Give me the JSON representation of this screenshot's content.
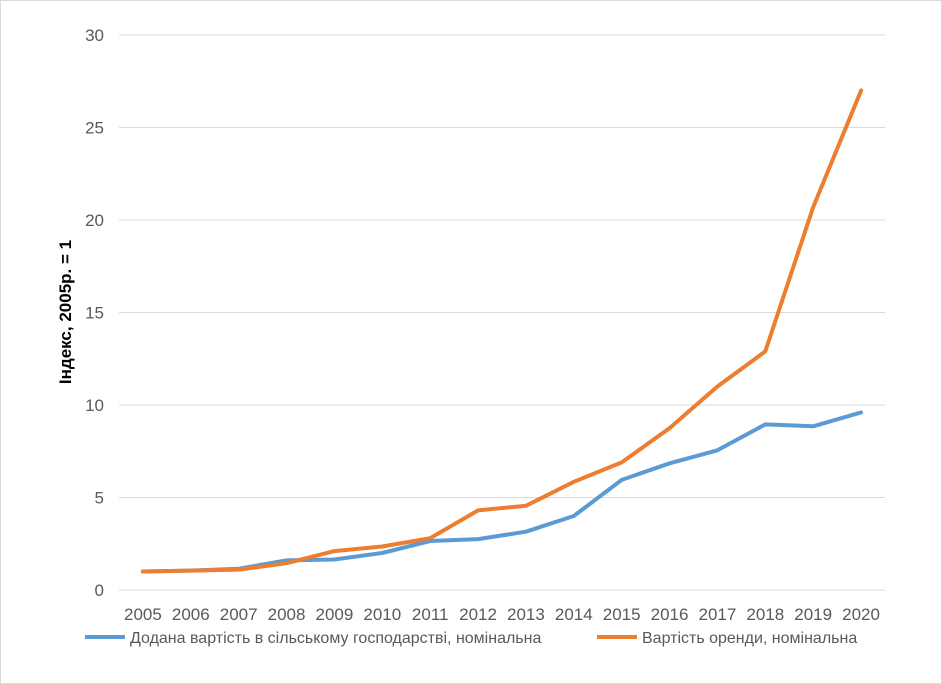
{
  "chart_data": {
    "type": "line",
    "title": "",
    "xlabel": "",
    "ylabel": "Індекс, 2005р. = 1",
    "ylim": [
      0,
      30
    ],
    "yticks": [
      0,
      5,
      10,
      15,
      20,
      25,
      30
    ],
    "grid": true,
    "legend_position": "bottom",
    "categories": [
      "2005",
      "2006",
      "2007",
      "2008",
      "2009",
      "2010",
      "2011",
      "2012",
      "2013",
      "2014",
      "2015",
      "2016",
      "2017",
      "2018",
      "2019",
      "2020"
    ],
    "series": [
      {
        "name": "Додана вартість в сільському господарстві,  номінальна",
        "color": "#5b9bd5",
        "values": [
          1.0,
          1.05,
          1.15,
          1.6,
          1.65,
          2.0,
          2.65,
          2.75,
          3.15,
          4.0,
          5.95,
          6.85,
          7.55,
          8.95,
          8.85,
          9.6
        ]
      },
      {
        "name": "Вартість оренди, номінальна",
        "color": "#ed7d31",
        "values": [
          1.0,
          1.05,
          1.1,
          1.45,
          2.1,
          2.35,
          2.8,
          4.3,
          4.55,
          5.85,
          6.9,
          8.75,
          11.0,
          12.9,
          20.7,
          27.0
        ]
      }
    ]
  }
}
